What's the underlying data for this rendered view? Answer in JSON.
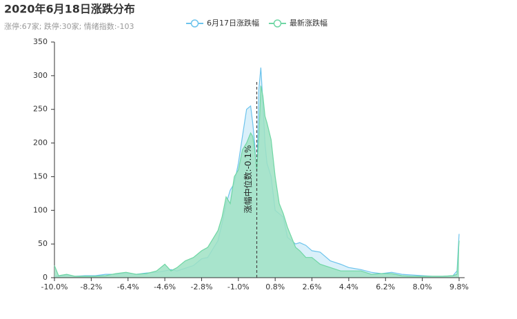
{
  "chart_data": {
    "type": "area",
    "title": "2020年6月18日涨跌分布",
    "subtitle": "涨停:67家; 跌停:30家; 情绪指数:-103",
    "x": [
      -10.0,
      -9.8,
      -9.4,
      -9.0,
      -8.5,
      -8.0,
      -7.5,
      -7.0,
      -6.5,
      -6.0,
      -5.5,
      -5.0,
      -4.6,
      -4.3,
      -4.0,
      -3.6,
      -3.2,
      -2.8,
      -2.5,
      -2.2,
      -2.0,
      -1.8,
      -1.6,
      -1.4,
      -1.2,
      -1.0,
      -0.8,
      -0.6,
      -0.4,
      -0.3,
      -0.2,
      -0.1,
      0.0,
      0.1,
      0.2,
      0.3,
      0.4,
      0.6,
      0.8,
      1.0,
      1.2,
      1.4,
      1.6,
      1.8,
      2.0,
      2.3,
      2.6,
      3.0,
      3.5,
      4.0,
      4.4,
      5.0,
      5.5,
      6.0,
      6.5,
      7.0,
      7.5,
      8.0,
      8.5,
      9.0,
      9.5,
      9.7,
      9.8
    ],
    "series": [
      {
        "name": "6月17日涨跌幅",
        "color": "#6cc3ec",
        "fill": "#d6eef9",
        "values": [
          3,
          2,
          4,
          2,
          3,
          3,
          5,
          5,
          7,
          5,
          7,
          8,
          10,
          12,
          10,
          14,
          18,
          28,
          30,
          45,
          55,
          80,
          110,
          130,
          140,
          170,
          210,
          250,
          255,
          230,
          200,
          150,
          280,
          312,
          260,
          200,
          170,
          150,
          100,
          95,
          90,
          60,
          55,
          50,
          52,
          48,
          40,
          38,
          25,
          20,
          15,
          12,
          8,
          6,
          8,
          5,
          4,
          3,
          2,
          2,
          3,
          10,
          65
        ]
      },
      {
        "name": "最新涨跌幅",
        "color": "#6fd6a4",
        "fill": "#9fe2c3",
        "values": [
          18,
          3,
          5,
          2,
          2,
          2,
          3,
          6,
          8,
          5,
          6,
          10,
          20,
          10,
          15,
          25,
          30,
          40,
          45,
          60,
          70,
          90,
          120,
          110,
          150,
          160,
          190,
          200,
          215,
          210,
          190,
          160,
          210,
          285,
          270,
          240,
          230,
          205,
          150,
          110,
          95,
          75,
          60,
          45,
          40,
          30,
          30,
          20,
          15,
          10,
          10,
          10,
          5,
          6,
          6,
          3,
          2,
          2,
          2,
          2,
          3,
          5,
          55
        ]
      }
    ],
    "xlim": [
      -10.0,
      9.8
    ],
    "xticks": [
      {
        "value": -10.0,
        "label": "-10.0%"
      },
      {
        "value": -8.2,
        "label": "-8.2%"
      },
      {
        "value": -6.4,
        "label": "-6.4%"
      },
      {
        "value": -4.6,
        "label": "-4.6%"
      },
      {
        "value": -2.8,
        "label": "-2.8%"
      },
      {
        "value": -1.0,
        "label": "-1.0%"
      },
      {
        "value": 0.8,
        "label": "0.8%"
      },
      {
        "value": 2.6,
        "label": "2.6%"
      },
      {
        "value": 4.4,
        "label": "4.4%"
      },
      {
        "value": 6.2,
        "label": "6.2%"
      },
      {
        "value": 8.0,
        "label": "8.0%"
      },
      {
        "value": 9.8,
        "label": "9.8%"
      }
    ],
    "ylim": [
      0,
      350
    ],
    "yticks": [
      0,
      50,
      100,
      150,
      200,
      250,
      300,
      350
    ],
    "annotation": {
      "x": -0.1,
      "label": "涨幅中位数:-0.1%"
    }
  }
}
